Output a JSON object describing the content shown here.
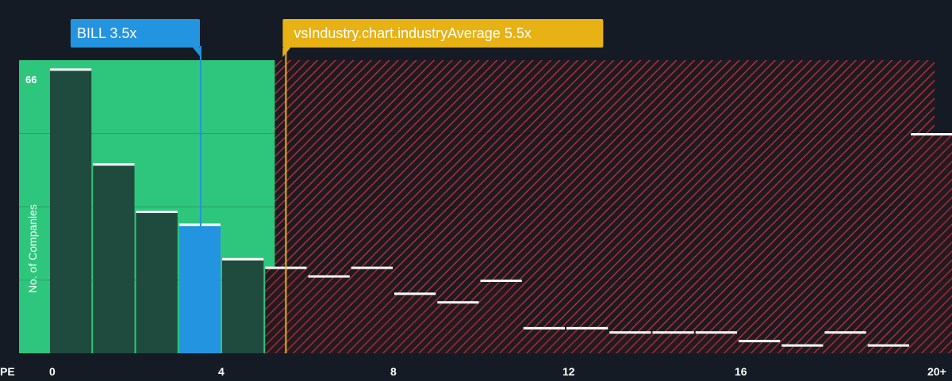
{
  "chart_data": {
    "type": "bar",
    "x_axis_label": "PE",
    "y_axis_label": "No. of Companies",
    "x_ticks": [
      "0",
      "4",
      "8",
      "12",
      "16",
      "20+"
    ],
    "y_max_label": "66",
    "bins": [
      {
        "x": 0,
        "count": 66
      },
      {
        "x": 1,
        "count": 44
      },
      {
        "x": 2,
        "count": 33
      },
      {
        "x": 3,
        "count": 30
      },
      {
        "x": 4,
        "count": 22
      },
      {
        "x": 5,
        "count": 20
      },
      {
        "x": 6,
        "count": 18
      },
      {
        "x": 7,
        "count": 20
      },
      {
        "x": 8,
        "count": 14
      },
      {
        "x": 9,
        "count": 12
      },
      {
        "x": 10,
        "count": 17
      },
      {
        "x": 11,
        "count": 6
      },
      {
        "x": 12,
        "count": 6
      },
      {
        "x": 13,
        "count": 5
      },
      {
        "x": 14,
        "count": 5
      },
      {
        "x": 15,
        "count": 5
      },
      {
        "x": 16,
        "count": 3
      },
      {
        "x": 17,
        "count": 2
      },
      {
        "x": 18,
        "count": 5
      },
      {
        "x": 19,
        "count": 2
      },
      {
        "x": 20,
        "count": 51
      }
    ],
    "company": {
      "label": "BILL 3.5x",
      "value": 3.5,
      "color": "#2394df"
    },
    "industry_average": {
      "label": "vsIndustry.chart.industryAverage 5.5x",
      "value": 5.5,
      "color": "#e8b114"
    },
    "colors": {
      "background": "#151b24",
      "undervalued_zone": "#2ec67c",
      "bar_fill": "#1f4a3e",
      "bar_top": "#ffffff",
      "overvalued_hatch": "#c0393e",
      "text": "#ffffff"
    }
  }
}
